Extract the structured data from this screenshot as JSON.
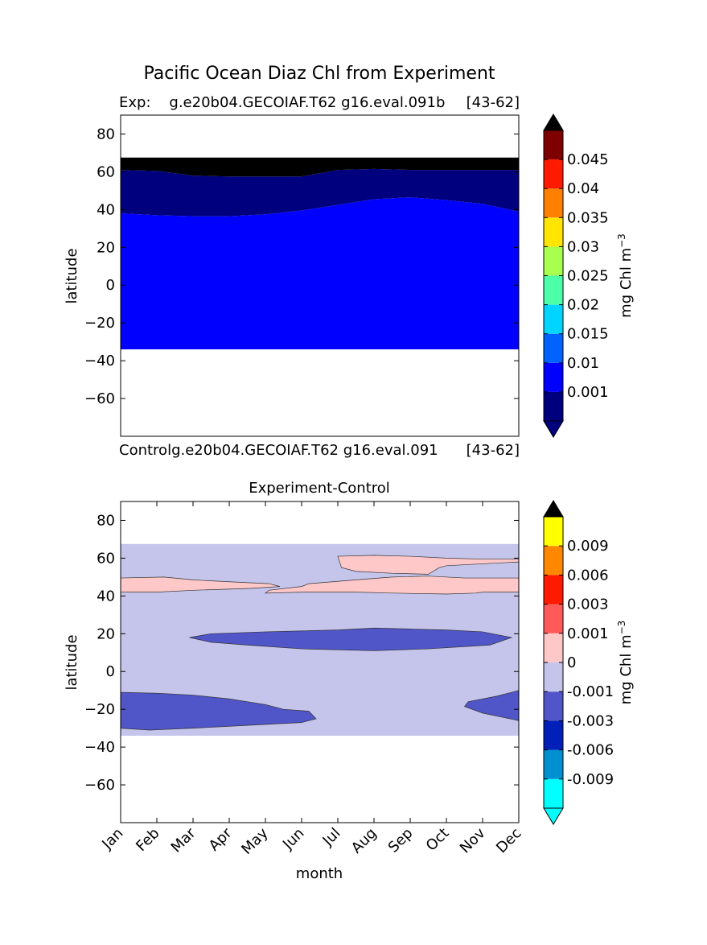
{
  "figure_title": "Pacific Ocean Diaz Chl from Experiment",
  "colors": {
    "exp_levels": [
      "#00007f",
      "#0000ff",
      "#0063ff",
      "#00d5ff",
      "#4dffa9",
      "#a9ff4d",
      "#ffe500",
      "#ff7f00",
      "#ff1a00",
      "#7f0000"
    ],
    "exp_over": "#000000",
    "exp_under": "#00007f",
    "diff_levels": [
      "#00ffff",
      "#0090d0",
      "#0020b8",
      "#5055c8",
      "#c5c5ec",
      "#ffc8c8",
      "#ff5a5a",
      "#ff1a00",
      "#ff8800",
      "#ffff00"
    ],
    "diff_over": "#000000",
    "diff_under": "#00ffff"
  },
  "chart_data": [
    {
      "type": "heatmap",
      "name": "experiment",
      "title_left": "Exp:    g.e20b04.GECOIAF.T62 g16.eval.091b",
      "title_right": "[43-62]",
      "xlabel": "",
      "ylabel": "latitude",
      "xlim": [
        0,
        11
      ],
      "ylim": [
        -80,
        90
      ],
      "yticks": [
        80,
        60,
        40,
        20,
        0,
        -20,
        -40,
        -60
      ],
      "colorbar": {
        "label": "mg Chl m",
        "label_sup": "-3",
        "ticks": [
          "0.045",
          "0.04",
          "0.035",
          "0.03",
          "0.025",
          "0.02",
          "0.015",
          "0.01",
          "0.001"
        ],
        "extend": "both"
      },
      "fields": [
        {
          "level": "0.001-0.005",
          "x": [
            0,
            1,
            2,
            3,
            4,
            5,
            6,
            7,
            8,
            9,
            10,
            11
          ],
          "lower": [
            -34,
            -34,
            -34,
            -34,
            -34,
            -34,
            -34,
            -34,
            -34,
            -34,
            -34,
            -34
          ],
          "upper": [
            38,
            37,
            36.5,
            36.5,
            37.5,
            39.5,
            42.5,
            45.5,
            46.5,
            45,
            43,
            39
          ]
        },
        {
          "level": "< 0.001",
          "x": [
            0,
            1,
            2,
            3,
            4,
            5,
            6,
            7,
            8,
            9,
            10,
            11
          ],
          "lower": [
            38,
            37,
            36.5,
            36.5,
            37.5,
            39.5,
            42.5,
            45.5,
            46.5,
            45,
            43,
            39
          ],
          "upper": [
            61,
            60.5,
            58,
            57.5,
            57.5,
            57.5,
            61,
            61.5,
            61,
            61,
            61,
            61
          ]
        },
        {
          "level": "> 0.05",
          "x": [
            0,
            1,
            2,
            3,
            4,
            5,
            6,
            7,
            8,
            9,
            10,
            11
          ],
          "lower": [
            61,
            60.5,
            58,
            57.5,
            57.5,
            57.5,
            61,
            61.5,
            61,
            61,
            61,
            61
          ],
          "upper": [
            67.5,
            67.5,
            67.5,
            67.5,
            67.5,
            67.5,
            67.5,
            67.5,
            67.5,
            67.5,
            67.5,
            67.5
          ]
        }
      ]
    },
    {
      "type": "heatmap",
      "name": "difference",
      "title_left": "Controlg.e20b04.GECOIAF.T62 g16.eval.091",
      "title_right": "[43-62]",
      "title_center": "Experiment-Control",
      "xlabel": "month",
      "ylabel": "latitude",
      "xlim": [
        0,
        11
      ],
      "ylim": [
        -80,
        90
      ],
      "yticks": [
        80,
        60,
        40,
        20,
        0,
        -20,
        -40,
        -60
      ],
      "xticks": [
        "Jan",
        "Feb",
        "Mar",
        "Apr",
        "May",
        "Jun",
        "Jul",
        "Aug",
        "Sep",
        "Oct",
        "Nov",
        "Dec"
      ],
      "colorbar": {
        "label": "mg Chl m",
        "label_sup": "-3",
        "ticks": [
          "0.009",
          "0.006",
          "0.003",
          "0.001",
          "0",
          "-0.001",
          "-0.003",
          "-0.006",
          "-0.009"
        ],
        "extend": "both"
      },
      "background": {
        "level": "-0.001-0",
        "lat_range": [
          -34,
          67.5
        ]
      },
      "regions": [
        {
          "level": "0-0.001",
          "outline": [
            [
              0,
              49.5
            ],
            [
              1.2,
              50
            ],
            [
              2,
              48.5
            ],
            [
              3,
              47.5
            ],
            [
              4.1,
              46.5
            ],
            [
              4.4,
              45
            ],
            [
              3.6,
              44
            ],
            [
              2,
              43
            ],
            [
              1,
              42
            ],
            [
              0,
              42
            ]
          ]
        },
        {
          "level": "0-0.001",
          "outline": [
            [
              6,
              61
            ],
            [
              7,
              61.5
            ],
            [
              8,
              61
            ],
            [
              9,
              60
            ],
            [
              10,
              59.5
            ],
            [
              11,
              59.5
            ],
            [
              11,
              58
            ],
            [
              10,
              57
            ],
            [
              9,
              56
            ],
            [
              8.8,
              55
            ],
            [
              8.5,
              51.5
            ],
            [
              7.5,
              52
            ],
            [
              6.5,
              53
            ],
            [
              6.1,
              55
            ]
          ]
        },
        {
          "level": "0-0.001",
          "outline": [
            [
              5.2,
              46.5
            ],
            [
              6.5,
              48.5
            ],
            [
              7.5,
              50
            ],
            [
              8.5,
              50.5
            ],
            [
              9.5,
              49.5
            ],
            [
              11,
              49.5
            ],
            [
              11,
              42
            ],
            [
              10,
              42
            ],
            [
              9.8,
              41.5
            ],
            [
              9,
              41
            ],
            [
              7.5,
              41.5
            ],
            [
              6.5,
              42
            ],
            [
              5,
              42
            ],
            [
              4,
              41.5
            ],
            [
              4.1,
              43
            ],
            [
              5,
              45
            ]
          ]
        },
        {
          "level": "-0.003--0.001",
          "outline": [
            [
              1.9,
              18
            ],
            [
              2.5,
              20
            ],
            [
              4,
              21
            ],
            [
              6,
              22
            ],
            [
              7,
              23
            ],
            [
              8,
              22.5
            ],
            [
              9,
              22
            ],
            [
              10,
              21
            ],
            [
              10.8,
              18
            ],
            [
              10.2,
              14
            ],
            [
              8.5,
              12
            ],
            [
              7,
              11
            ],
            [
              5,
              12
            ],
            [
              3.5,
              14
            ],
            [
              2.5,
              15.5
            ]
          ]
        },
        {
          "level": "-0.003--0.001",
          "outline": [
            [
              0,
              -11
            ],
            [
              1,
              -11.5
            ],
            [
              2,
              -12.5
            ],
            [
              3,
              -14.5
            ],
            [
              4,
              -17.5
            ],
            [
              4.5,
              -20
            ],
            [
              5.2,
              -21
            ],
            [
              5.4,
              -25
            ],
            [
              5,
              -27
            ],
            [
              3.5,
              -28.5
            ],
            [
              2,
              -30
            ],
            [
              0.8,
              -31
            ],
            [
              0,
              -30
            ]
          ]
        },
        {
          "level": "-0.003--0.001",
          "outline": [
            [
              11,
              -10
            ],
            [
              10.4,
              -13
            ],
            [
              9.6,
              -16
            ],
            [
              9.5,
              -18.5
            ],
            [
              10,
              -22
            ],
            [
              11,
              -26
            ]
          ]
        }
      ]
    }
  ]
}
